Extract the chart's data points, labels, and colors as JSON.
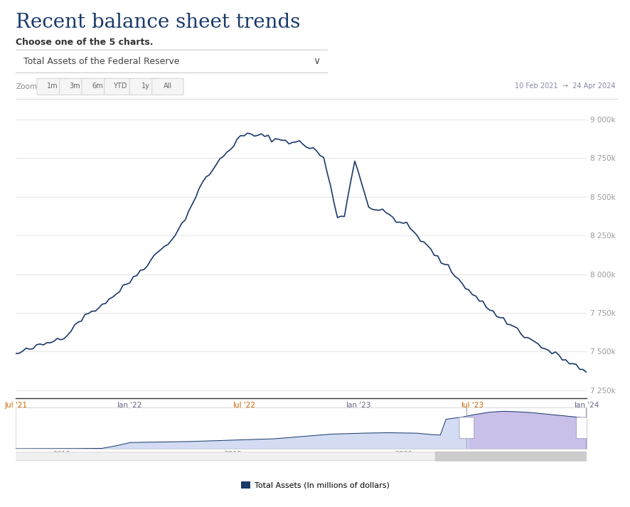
{
  "title": "Recent balance sheet trends",
  "subtitle": "Choose one of the 5 charts.",
  "dropdown_label": "Total Assets of the Federal Reserve",
  "zoom_buttons": [
    "Zoom",
    "1m",
    "3m",
    "6m",
    "YTD",
    "1y",
    "All"
  ],
  "date_range": "10 Feb 2021  →  24 Apr 2024",
  "y_ticks": [
    7250000,
    7500000,
    7750000,
    8000000,
    8250000,
    8500000,
    8750000,
    9000000
  ],
  "y_tick_labels": [
    "7 250k",
    "7 500k",
    "7 750k",
    "8 000k",
    "8 250k",
    "8 500k",
    "8 750k",
    "9 000k"
  ],
  "x_tick_labels": [
    "Jul '21",
    "Jan '22",
    "Jul '22",
    "Jan '23",
    "Jul '23",
    "Jan '24"
  ],
  "x_tick_colors": [
    "#cc6600",
    "#666688",
    "#cc6600",
    "#666688",
    "#cc6600",
    "#666688"
  ],
  "main_line_color": "#1a3a6b",
  "mini_line_color": "#1a3a6b",
  "mini_fill_color": "#c8d4f0",
  "mini_selected_fill": "#c8bce8",
  "background_color": "#ffffff",
  "grid_color": "#e8e8e8",
  "legend_label": "Total Assets (In millions of dollars)",
  "main_ylim": [
    7200000,
    9100000
  ],
  "title_color": "#1a3a6b",
  "subtitle_color": "#333333",
  "dropdown_border_color": "#cccccc",
  "zoom_btn_colors": [
    "#f0f0f0",
    "#f0f0f0",
    "#f0f0f0",
    "#f0f0f0",
    "#f0f0f0",
    "#f0f0f0"
  ],
  "date_range_color": "#8888aa"
}
